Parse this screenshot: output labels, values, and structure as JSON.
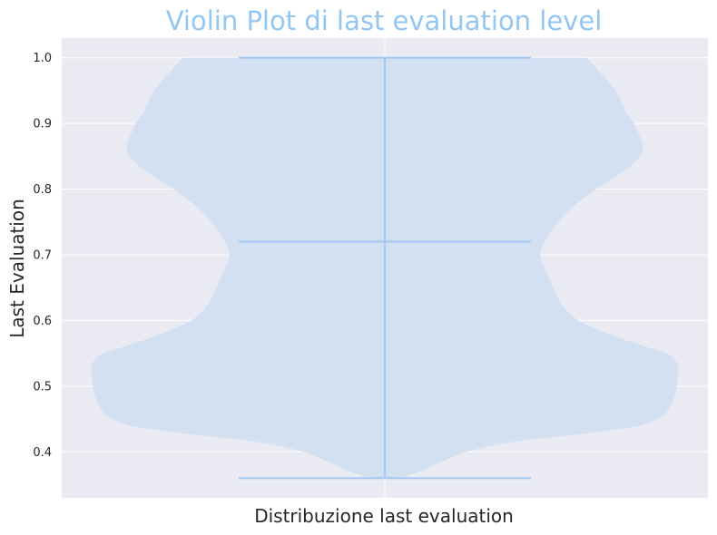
{
  "chart_data": {
    "type": "violin",
    "title": "Violin Plot di last evaluation level",
    "xlabel": "Distribuzione last evaluation",
    "ylabel": "Last Evaluation",
    "ylim": [
      0.33,
      1.03
    ],
    "yticks": [
      "0.4",
      "0.5",
      "0.6",
      "0.7",
      "0.8",
      "0.9",
      "1.0"
    ],
    "grid": true,
    "series": [
      {
        "min": 0.36,
        "median": 0.72,
        "max": 1.0,
        "density_profile": {
          "y": [
            0.36,
            0.37,
            0.38,
            0.39,
            0.4,
            0.41,
            0.42,
            0.43,
            0.44,
            0.45,
            0.46,
            0.48,
            0.5,
            0.52,
            0.53,
            0.54,
            0.55,
            0.56,
            0.58,
            0.6,
            0.62,
            0.64,
            0.66,
            0.68,
            0.7,
            0.72,
            0.74,
            0.76,
            0.78,
            0.8,
            0.82,
            0.84,
            0.86,
            0.88,
            0.9,
            0.92,
            0.94,
            0.96,
            0.98,
            1.0
          ],
          "width": [
            0.05,
            0.12,
            0.17,
            0.22,
            0.28,
            0.37,
            0.52,
            0.72,
            0.87,
            0.93,
            0.96,
            0.985,
            0.995,
            1.0,
            1.0,
            0.99,
            0.96,
            0.89,
            0.76,
            0.66,
            0.61,
            0.585,
            0.565,
            0.545,
            0.53,
            0.545,
            0.575,
            0.61,
            0.66,
            0.72,
            0.79,
            0.85,
            0.88,
            0.87,
            0.85,
            0.82,
            0.8,
            0.77,
            0.73,
            0.69
          ]
        }
      }
    ],
    "colors": {
      "title": "#92c6f4",
      "body": "#d3e0f2",
      "lines": "#a2c8f1",
      "plot_background": "#eaeaf2",
      "grid": "#ffffff"
    }
  }
}
